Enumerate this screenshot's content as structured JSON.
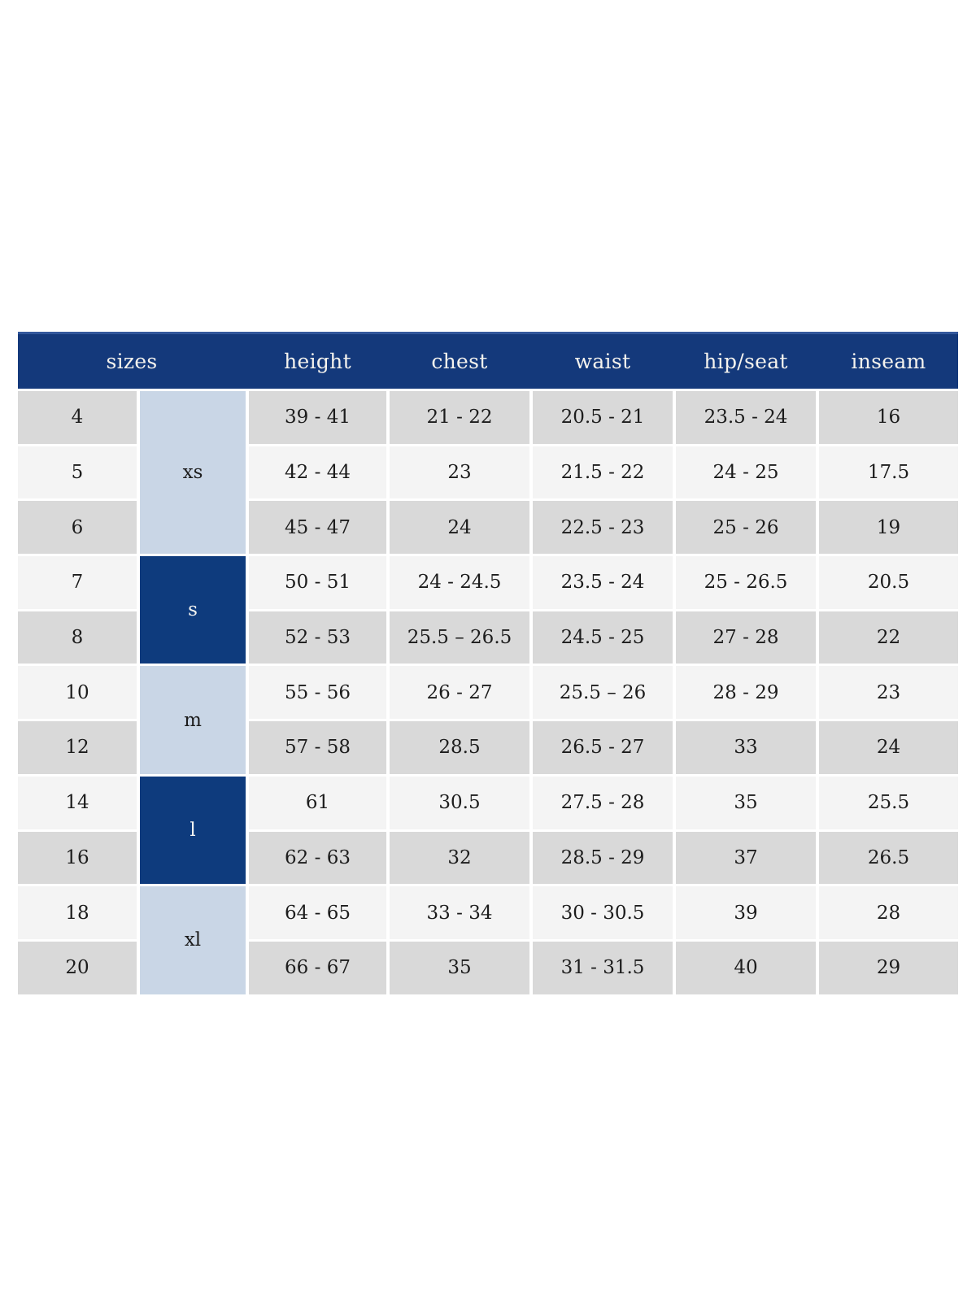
{
  "size_chart": {
    "columns": [
      "sizes",
      "height",
      "chest",
      "waist",
      "hip/seat",
      "inseam"
    ],
    "groups": [
      {
        "label": "xs",
        "span": 3,
        "variant": "light"
      },
      {
        "label": "s",
        "span": 2,
        "variant": "dark"
      },
      {
        "label": "m",
        "span": 2,
        "variant": "light"
      },
      {
        "label": "l",
        "span": 2,
        "variant": "dark"
      },
      {
        "label": "xl",
        "span": 2,
        "variant": "light"
      }
    ],
    "rows": [
      {
        "size": "4",
        "values": [
          "39 - 41",
          "21 - 22",
          "20.5 - 21",
          "23.5 - 24",
          "16"
        ]
      },
      {
        "size": "5",
        "values": [
          "42 - 44",
          "23",
          "21.5 - 22",
          "24 - 25",
          "17.5"
        ]
      },
      {
        "size": "6",
        "values": [
          "45 - 47",
          "24",
          "22.5 - 23",
          "25 - 26",
          "19"
        ]
      },
      {
        "size": "7",
        "values": [
          "50 - 51",
          "24 - 24.5",
          "23.5 - 24",
          "25 - 26.5",
          "20.5"
        ]
      },
      {
        "size": "8",
        "values": [
          "52 - 53",
          "25.5 – 26.5",
          "24.5 - 25",
          "27 - 28",
          "22"
        ]
      },
      {
        "size": "10",
        "values": [
          "55 - 56",
          "26 - 27",
          "25.5 – 26",
          "28 - 29",
          "23"
        ]
      },
      {
        "size": "12",
        "values": [
          "57 - 58",
          "28.5",
          "26.5 - 27",
          "33",
          "24"
        ]
      },
      {
        "size": "14",
        "values": [
          "61",
          "30.5",
          "27.5 - 28",
          "35",
          "25.5"
        ]
      },
      {
        "size": "16",
        "values": [
          "62 - 63",
          "32",
          "28.5 - 29",
          "37",
          "26.5"
        ]
      },
      {
        "size": "18",
        "values": [
          "64 - 65",
          "33 - 34",
          "30 - 30.5",
          "39",
          "28"
        ]
      },
      {
        "size": "20",
        "values": [
          "66 - 67",
          "35",
          "31 - 31.5",
          "40",
          "29"
        ]
      }
    ],
    "colors": {
      "header_navy": "#14397b",
      "header_topline": "#33589c",
      "header_text": "#f5f3ee",
      "group_light": "#c9d6e6",
      "group_dark": "#0e3b7d",
      "row_gray": "#d9d9d9",
      "row_light": "#f4f4f4",
      "cell_text": "#1c1c1c"
    }
  }
}
